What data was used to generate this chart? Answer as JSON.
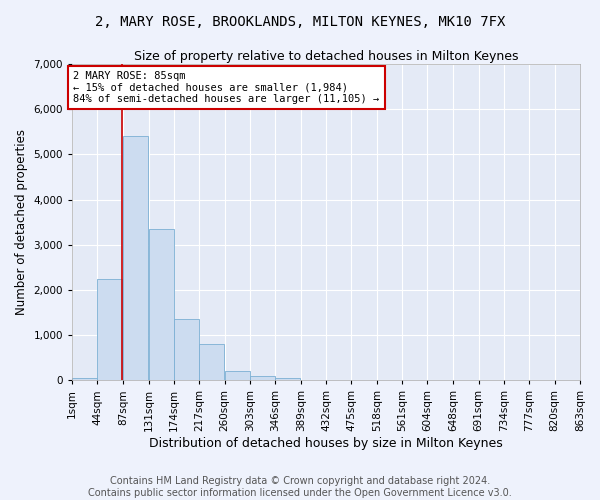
{
  "title": "2, MARY ROSE, BROOKLANDS, MILTON KEYNES, MK10 7FX",
  "subtitle": "Size of property relative to detached houses in Milton Keynes",
  "xlabel": "Distribution of detached houses by size in Milton Keynes",
  "ylabel": "Number of detached properties",
  "footer_line1": "Contains HM Land Registry data © Crown copyright and database right 2024.",
  "footer_line2": "Contains public sector information licensed under the Open Government Licence v3.0.",
  "bar_color": "#ccdcf0",
  "bar_edge_color": "#7bafd4",
  "property_line_color": "#cc0000",
  "property_size": 85,
  "annotation_text": "2 MARY ROSE: 85sqm\n← 15% of detached houses are smaller (1,984)\n84% of semi-detached houses are larger (11,105) →",
  "annotation_box_color": "#ffffff",
  "annotation_box_edge_color": "#cc0000",
  "bin_edges": [
    1,
    44,
    87,
    131,
    174,
    217,
    260,
    303,
    346,
    389,
    432,
    475,
    518,
    561,
    604,
    648,
    691,
    734,
    777,
    820,
    863
  ],
  "bin_labels": [
    "1sqm",
    "44sqm",
    "87sqm",
    "131sqm",
    "174sqm",
    "217sqm",
    "260sqm",
    "303sqm",
    "346sqm",
    "389sqm",
    "432sqm",
    "475sqm",
    "518sqm",
    "561sqm",
    "604sqm",
    "648sqm",
    "691sqm",
    "734sqm",
    "777sqm",
    "820sqm",
    "863sqm"
  ],
  "bar_heights": [
    55,
    2250,
    5400,
    3350,
    1350,
    800,
    200,
    100,
    55,
    15,
    5,
    2,
    1,
    1,
    0,
    0,
    0,
    0,
    0,
    0
  ],
  "ylim": [
    0,
    7000
  ],
  "yticks": [
    0,
    1000,
    2000,
    3000,
    4000,
    5000,
    6000,
    7000
  ],
  "background_color": "#eef2fc",
  "plot_background_color": "#e4eaf6",
  "grid_color": "#ffffff",
  "title_fontsize": 10,
  "subtitle_fontsize": 9,
  "axis_label_fontsize": 8.5,
  "tick_fontsize": 7.5,
  "footer_fontsize": 7,
  "annotation_fontsize": 7.5
}
